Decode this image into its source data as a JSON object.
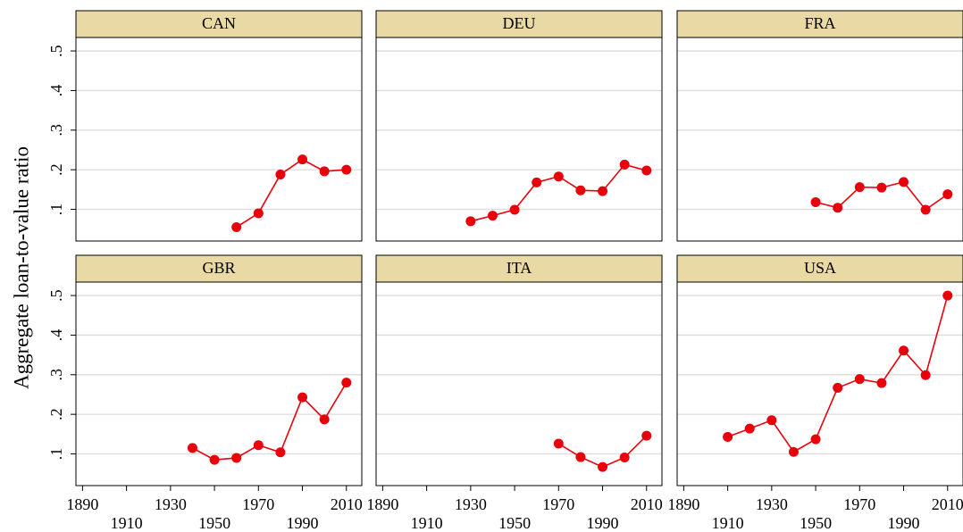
{
  "chart_data": {
    "type": "line",
    "ylabel": "Aggregate loan-to-value ratio",
    "color": "#e8000b",
    "xlim": [
      1887,
      2017
    ],
    "xticks": [
      1890,
      1910,
      1930,
      1950,
      1970,
      1990,
      2010
    ],
    "ylim": [
      0.02,
      0.534
    ],
    "yticks": [
      {
        "value": 0.1,
        "label": ".1"
      },
      {
        "value": 0.2,
        "label": ".2"
      },
      {
        "value": 0.3,
        "label": ".3"
      },
      {
        "value": 0.4,
        "label": ".4"
      },
      {
        "value": 0.5,
        "label": ".5"
      }
    ],
    "grid": true,
    "panels": [
      {
        "title": "CAN",
        "x": [
          1960,
          1970,
          1980,
          1990,
          2000,
          2010
        ],
        "values": [
          0.055,
          0.09,
          0.188,
          0.226,
          0.196,
          0.2
        ]
      },
      {
        "title": "DEU",
        "x": [
          1930,
          1940,
          1950,
          1960,
          1970,
          1980,
          1990,
          2000,
          2010
        ],
        "values": [
          0.07,
          0.084,
          0.099,
          0.168,
          0.183,
          0.148,
          0.146,
          0.213,
          0.198
        ]
      },
      {
        "title": "FRA",
        "x": [
          1950,
          1960,
          1970,
          1980,
          1990,
          2000,
          2010
        ],
        "values": [
          0.118,
          0.104,
          0.156,
          0.155,
          0.169,
          0.099,
          0.138
        ]
      },
      {
        "title": "GBR",
        "x": [
          1940,
          1950,
          1960,
          1970,
          1980,
          1990,
          2000,
          2010
        ],
        "values": [
          0.115,
          0.085,
          0.09,
          0.122,
          0.104,
          0.243,
          0.187,
          0.28
        ]
      },
      {
        "title": "ITA",
        "x": [
          1970,
          1980,
          1990,
          2000,
          2010
        ],
        "values": [
          0.126,
          0.092,
          0.067,
          0.091,
          0.146
        ]
      },
      {
        "title": "USA",
        "x": [
          1910,
          1920,
          1930,
          1940,
          1950,
          1960,
          1970,
          1980,
          1990,
          2000,
          2010
        ],
        "values": [
          0.143,
          0.164,
          0.185,
          0.105,
          0.137,
          0.267,
          0.289,
          0.279,
          0.361,
          0.299,
          0.5
        ]
      }
    ]
  }
}
